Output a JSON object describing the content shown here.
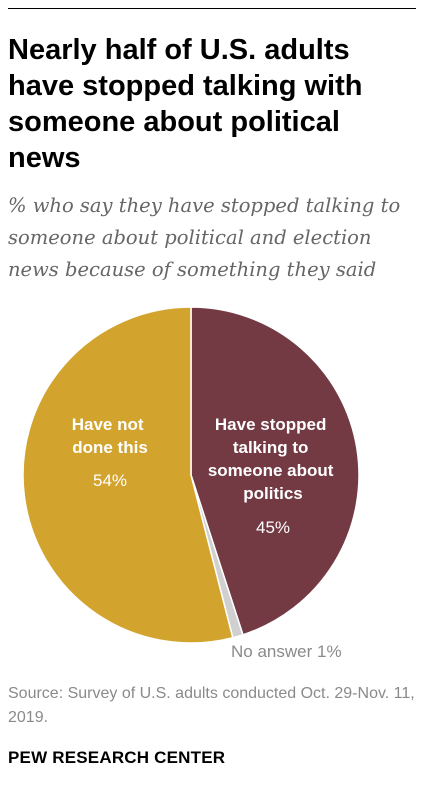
{
  "title": "Nearly half of U.S. adults have stopped talking with someone about political news",
  "subtitle": "% who say they have stopped talking to someone about political and election news because of something they said",
  "source": "Source: Survey of U.S. adults conducted Oct. 29-Nov. 11, 2019.",
  "logo": "PEW RESEARCH CENTER",
  "chart_data": {
    "type": "pie",
    "slices": [
      {
        "label": "Have stopped talking to someone about politics",
        "value": 45,
        "value_label": "45%",
        "color": "#733a44"
      },
      {
        "label": "No answer",
        "value": 1,
        "value_label": "1%",
        "color": "#d0d0d0"
      },
      {
        "label": "Have not done this",
        "value": 54,
        "value_label": "54%",
        "color": "#d2a42e"
      }
    ]
  }
}
